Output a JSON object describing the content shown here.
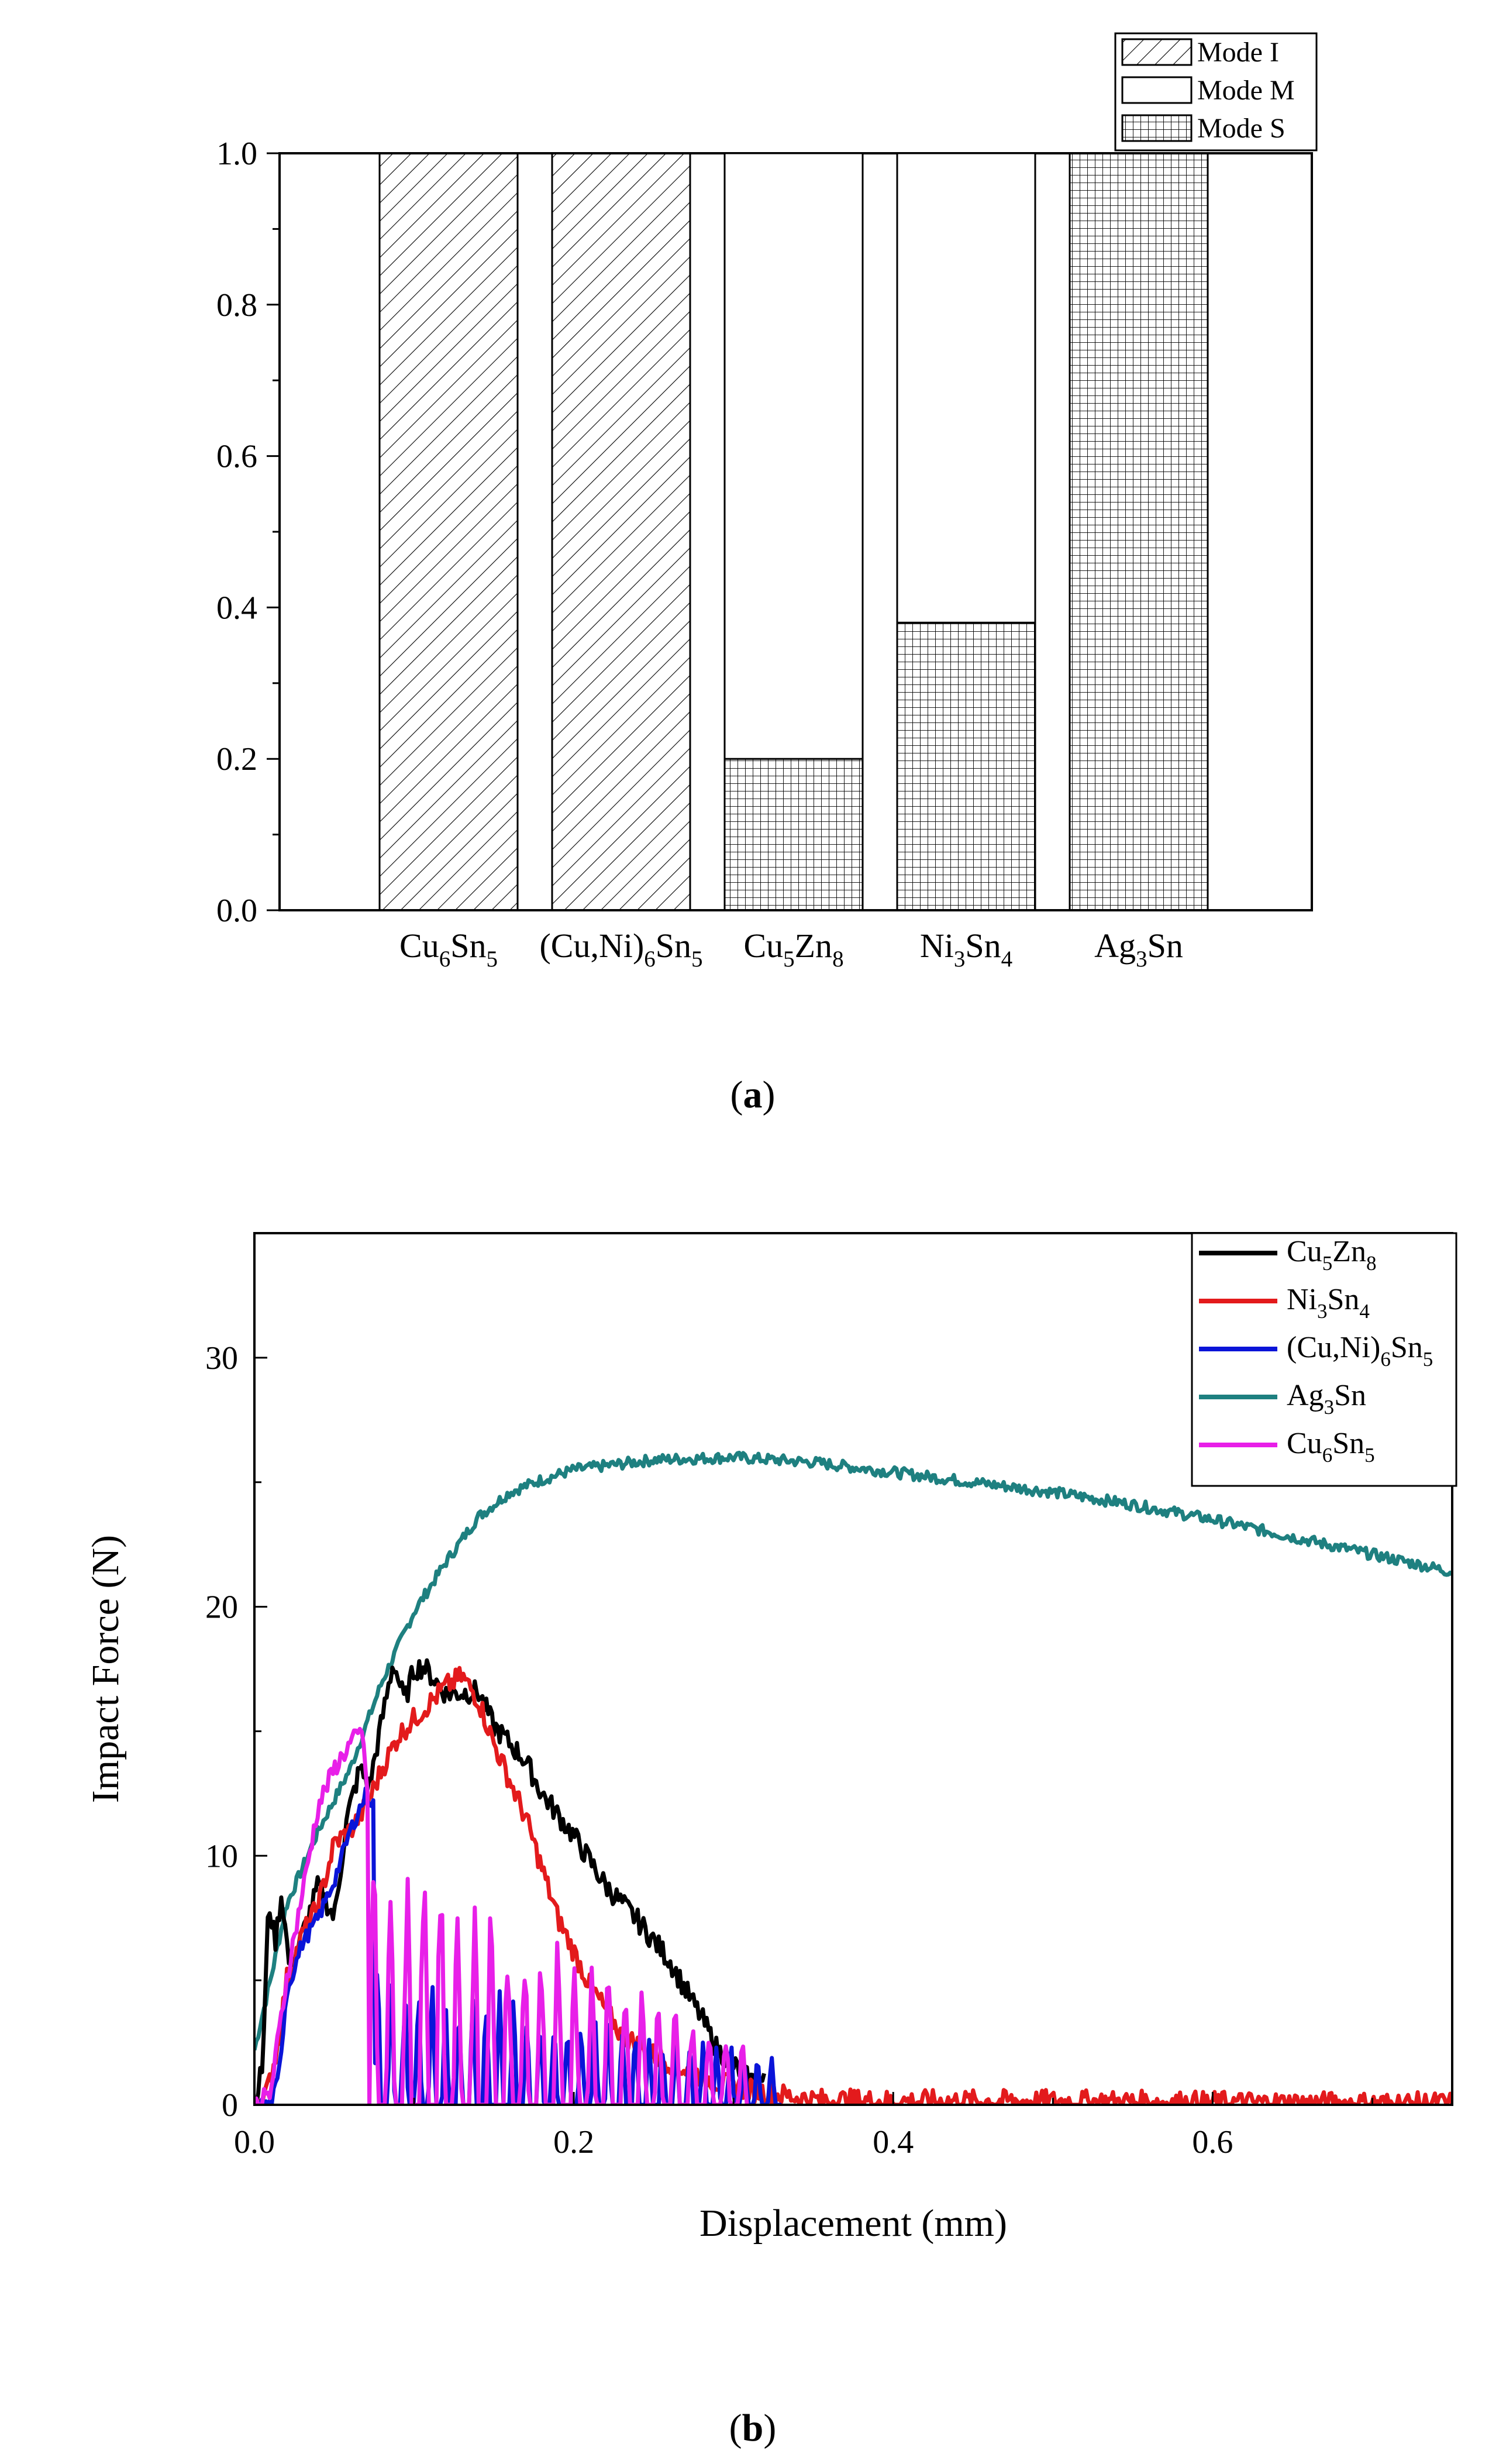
{
  "colors": {
    "black": "#000000",
    "red": "#e31a1c",
    "blue": "#0a14d8",
    "teal": "#1e8080",
    "magenta": "#e81fe8"
  },
  "chart_data": [
    {
      "type": "bar",
      "panel_label": "a",
      "stacked": true,
      "categories": [
        {
          "base": "Cu",
          "parts": [
            {
              "t": "6",
              "s": 1
            },
            {
              "t": "Sn"
            },
            {
              "t": "5",
              "s": 1
            }
          ]
        },
        {
          "base": "(Cu,Ni)",
          "parts": [
            {
              "t": "6",
              "s": 1
            },
            {
              "t": "Sn"
            },
            {
              "t": "5",
              "s": 1
            }
          ]
        },
        {
          "base": "Cu",
          "parts": [
            {
              "t": "5",
              "s": 1
            },
            {
              "t": "Zn"
            },
            {
              "t": "8",
              "s": 1
            }
          ]
        },
        {
          "base": "Ni",
          "parts": [
            {
              "t": "3",
              "s": 1
            },
            {
              "t": "Sn"
            },
            {
              "t": "4",
              "s": 1
            }
          ]
        },
        {
          "base": "Ag",
          "parts": [
            {
              "t": "3",
              "s": 1
            },
            {
              "t": "Sn"
            }
          ]
        }
      ],
      "series": [
        {
          "name": "Mode I",
          "pattern": "diagonal",
          "values": [
            1.0,
            1.0,
            0.0,
            0.0,
            0.0
          ]
        },
        {
          "name": "Mode M",
          "pattern": "none",
          "values": [
            0.0,
            0.0,
            0.8,
            0.62,
            0.0
          ]
        },
        {
          "name": "Mode S",
          "pattern": "grid",
          "values": [
            0.0,
            0.0,
            0.2,
            0.38,
            1.0
          ]
        }
      ],
      "stack_order": [
        "Mode S",
        "Mode I",
        "Mode M"
      ],
      "ylim": [
        0,
        1.0
      ],
      "yticks": [
        "0.0",
        "0.2",
        "0.4",
        "0.6",
        "0.8",
        "1.0"
      ],
      "legend_position": "top-right",
      "xlabel": "",
      "ylabel": ""
    },
    {
      "type": "line",
      "panel_label": "b",
      "xlabel": "Displacement (mm)",
      "ylabel": "Impact Force (N)",
      "xlim": [
        0,
        0.75
      ],
      "ylim": [
        0,
        35
      ],
      "xticks": [
        "0.0",
        "0.2",
        "0.4",
        "0.6"
      ],
      "yticks": [
        "0",
        "10",
        "20",
        "30"
      ],
      "legend_position": "top-right",
      "series": [
        {
          "name": "Cu5Zn8",
          "label": {
            "base": "Cu",
            "parts": [
              {
                "t": "5",
                "s": 1
              },
              {
                "t": "Zn"
              },
              {
                "t": "8",
                "s": 1
              }
            ]
          },
          "color": "#000000",
          "noise": 0.45,
          "points": [
            [
              0,
              0
            ],
            [
              0.005,
              1.5
            ],
            [
              0.009,
              8.2
            ],
            [
              0.013,
              6.5
            ],
            [
              0.017,
              8.5
            ],
            [
              0.022,
              5.5
            ],
            [
              0.03,
              6.8
            ],
            [
              0.04,
              8.8
            ],
            [
              0.05,
              7.5
            ],
            [
              0.058,
              11.5
            ],
            [
              0.066,
              13.5
            ],
            [
              0.072,
              12.8
            ],
            [
              0.08,
              15.5
            ],
            [
              0.087,
              17.8
            ],
            [
              0.094,
              16.2
            ],
            [
              0.1,
              17.5
            ],
            [
              0.106,
              17.6
            ],
            [
              0.12,
              16.5
            ],
            [
              0.14,
              16.6
            ],
            [
              0.15,
              15.2
            ],
            [
              0.17,
              13.8
            ],
            [
              0.18,
              12.5
            ],
            [
              0.2,
              10.8
            ],
            [
              0.22,
              8.8
            ],
            [
              0.24,
              7.4
            ],
            [
              0.26,
              5.8
            ],
            [
              0.27,
              4.6
            ],
            [
              0.28,
              3.5
            ],
            [
              0.29,
              2.2
            ],
            [
              0.3,
              1.6
            ],
            [
              0.31,
              1.0
            ],
            [
              0.32,
              0.9
            ]
          ]
        },
        {
          "name": "Ni3Sn4",
          "label": {
            "base": "Ni",
            "parts": [
              {
                "t": "3",
                "s": 1
              },
              {
                "t": "Sn"
              },
              {
                "t": "4",
                "s": 1
              }
            ]
          },
          "color": "#e31a1c",
          "noise": 0.45,
          "points": [
            [
              0,
              0
            ],
            [
              0.008,
              0.5
            ],
            [
              0.015,
              2.5
            ],
            [
              0.02,
              5.0
            ],
            [
              0.03,
              6.8
            ],
            [
              0.04,
              8.0
            ],
            [
              0.05,
              10.5
            ],
            [
              0.06,
              11.0
            ],
            [
              0.07,
              12.0
            ],
            [
              0.08,
              13.5
            ],
            [
              0.09,
              14.8
            ],
            [
              0.1,
              15.5
            ],
            [
              0.12,
              16.8
            ],
            [
              0.13,
              17.2
            ],
            [
              0.14,
              16.3
            ],
            [
              0.15,
              14.5
            ],
            [
              0.17,
              11.5
            ],
            [
              0.19,
              7.5
            ],
            [
              0.21,
              4.8
            ],
            [
              0.23,
              2.8
            ],
            [
              0.25,
              2.0
            ],
            [
              0.27,
              1.4
            ],
            [
              0.29,
              0.9
            ],
            [
              0.31,
              0.6
            ],
            [
              0.33,
              0.4
            ],
            [
              0.35,
              0.2
            ],
            [
              0.4,
              0.15
            ],
            [
              0.5,
              0.15
            ],
            [
              0.6,
              0.1
            ],
            [
              0.75,
              0.05
            ]
          ]
        },
        {
          "name": "(Cu,Ni)6Sn5",
          "label": {
            "base": "(Cu,Ni)",
            "parts": [
              {
                "t": "6",
                "s": 1
              },
              {
                "t": "Sn"
              },
              {
                "t": "5",
                "s": 1
              }
            ]
          },
          "color": "#0a14d8",
          "noise": 0.3,
          "osc": {
            "start": 0.075,
            "end": 0.33,
            "period": 0.0085,
            "decay": [
              4.5,
              1.8
            ]
          },
          "points": [
            [
              0,
              0
            ],
            [
              0.01,
              0
            ],
            [
              0.015,
              1.0
            ],
            [
              0.02,
              4.5
            ],
            [
              0.03,
              6.5
            ],
            [
              0.04,
              7.5
            ],
            [
              0.05,
              9.0
            ],
            [
              0.06,
              11.0
            ],
            [
              0.07,
              12.5
            ],
            [
              0.075,
              12.0
            ]
          ]
        },
        {
          "name": "Ag3Sn",
          "label": {
            "base": "Ag",
            "parts": [
              {
                "t": "3",
                "s": 1
              },
              {
                "t": "Sn"
              }
            ]
          },
          "color": "#1e8080",
          "noise": 0.22,
          "points": [
            [
              0,
              2.2
            ],
            [
              0.01,
              5.0
            ],
            [
              0.02,
              8.0
            ],
            [
              0.04,
              11.0
            ],
            [
              0.06,
              13.5
            ],
            [
              0.08,
              17.0
            ],
            [
              0.1,
              19.8
            ],
            [
              0.12,
              21.8
            ],
            [
              0.14,
              23.6
            ],
            [
              0.16,
              24.6
            ],
            [
              0.18,
              25.1
            ],
            [
              0.2,
              25.5
            ],
            [
              0.25,
              25.9
            ],
            [
              0.3,
              26.0
            ],
            [
              0.35,
              25.8
            ],
            [
              0.4,
              25.4
            ],
            [
              0.45,
              25.0
            ],
            [
              0.5,
              24.6
            ],
            [
              0.55,
              24.1
            ],
            [
              0.6,
              23.5
            ],
            [
              0.65,
              22.8
            ],
            [
              0.7,
              22.1
            ],
            [
              0.75,
              21.4
            ]
          ]
        },
        {
          "name": "Cu6Sn5",
          "label": {
            "base": "Cu",
            "parts": [
              {
                "t": "6",
                "s": 1
              },
              {
                "t": "Sn"
              },
              {
                "t": "5",
                "s": 1
              }
            ]
          },
          "color": "#e81fe8",
          "noise": 0.4,
          "osc": {
            "start": 0.072,
            "end": 0.31,
            "period": 0.0105,
            "decay": [
              9.0,
              2.0
            ]
          },
          "points": [
            [
              0,
              0
            ],
            [
              0.01,
              0.4
            ],
            [
              0.02,
              5.0
            ],
            [
              0.03,
              8.5
            ],
            [
              0.04,
              12.0
            ],
            [
              0.05,
              13.5
            ],
            [
              0.06,
              14.5
            ],
            [
              0.068,
              15.0
            ],
            [
              0.072,
              11.0
            ]
          ]
        }
      ]
    }
  ]
}
